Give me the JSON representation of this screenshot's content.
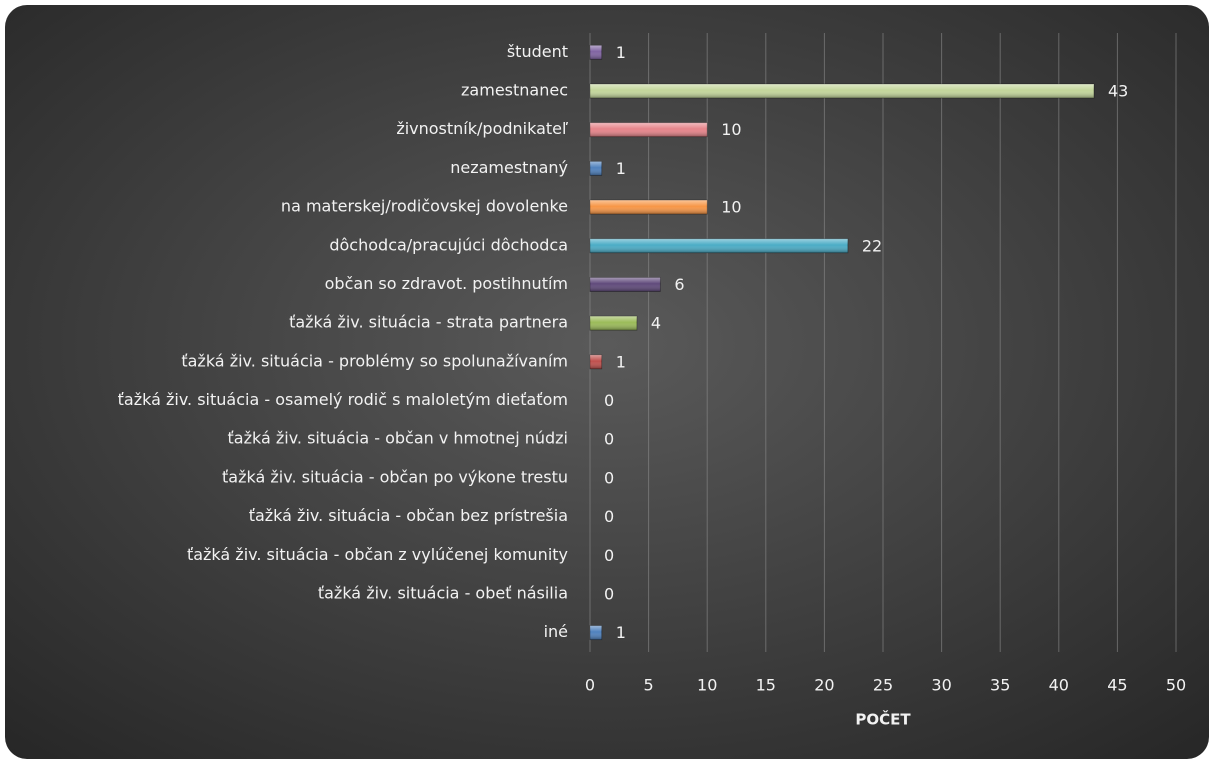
{
  "chart_data": {
    "type": "bar",
    "orientation": "horizontal",
    "categories": [
      "študent",
      "zamestnanec",
      "živnostník/podnikateľ",
      "nezamestnaný",
      "na materskej/rodičovskej dovolenke",
      "dôchodca/pracujúci dôchodca",
      "občan so zdravot. postihnutím",
      "ťažká živ. situácia - strata partnera",
      "ťažká živ. situácia - problémy so spolunažívaním",
      "ťažká živ. situácia - osamelý rodič s maloletým dieťaťom",
      "ťažká živ. situácia - občan v hmotnej núdzi",
      "ťažká živ. situácia - občan po výkone trestu",
      "ťažká živ. situácia - občan bez prístrešia",
      "ťažká živ. situácia - občan z vylúčenej komunity",
      "ťažká živ. situácia - obeť násilia",
      "iné"
    ],
    "values": [
      1,
      43,
      10,
      1,
      10,
      22,
      6,
      4,
      1,
      0,
      0,
      0,
      0,
      0,
      0,
      1
    ],
    "colors": [
      "#8064a2",
      "#c3d69b",
      "#e6848a",
      "#4f81bd",
      "#f79646",
      "#4bacc6",
      "#604a7b",
      "#9bbb59",
      "#c0504d",
      "#4f81bd",
      "#4f81bd",
      "#4f81bd",
      "#4f81bd",
      "#4f81bd",
      "#4f81bd",
      "#4f81bd"
    ],
    "x_label": "POČET",
    "xlim": [
      0,
      50
    ],
    "xticks": [
      0,
      5,
      10,
      15,
      20,
      25,
      30,
      35,
      40,
      45,
      50
    ],
    "grid": true
  }
}
